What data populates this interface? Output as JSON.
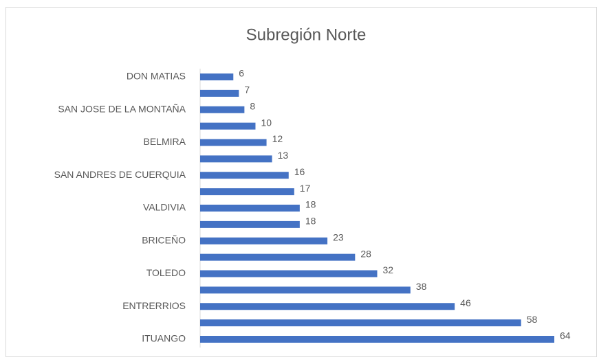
{
  "chart_data": {
    "type": "bar",
    "orientation": "horizontal",
    "title": "Subregión Norte",
    "categories": [
      "DON MATIAS",
      null,
      "SAN JOSE DE LA MONTAÑA",
      null,
      "BELMIRA",
      null,
      "SAN ANDRES DE CUERQUIA",
      null,
      "VALDIVIA",
      null,
      "BRICEÑO",
      null,
      "TOLEDO",
      null,
      "ENTRERRIOS",
      null,
      "ITUANGO"
    ],
    "values": [
      6,
      7,
      8,
      10,
      12,
      13,
      16,
      17,
      18,
      18,
      23,
      28,
      32,
      38,
      46,
      58,
      64
    ],
    "color": "#4472c4"
  }
}
